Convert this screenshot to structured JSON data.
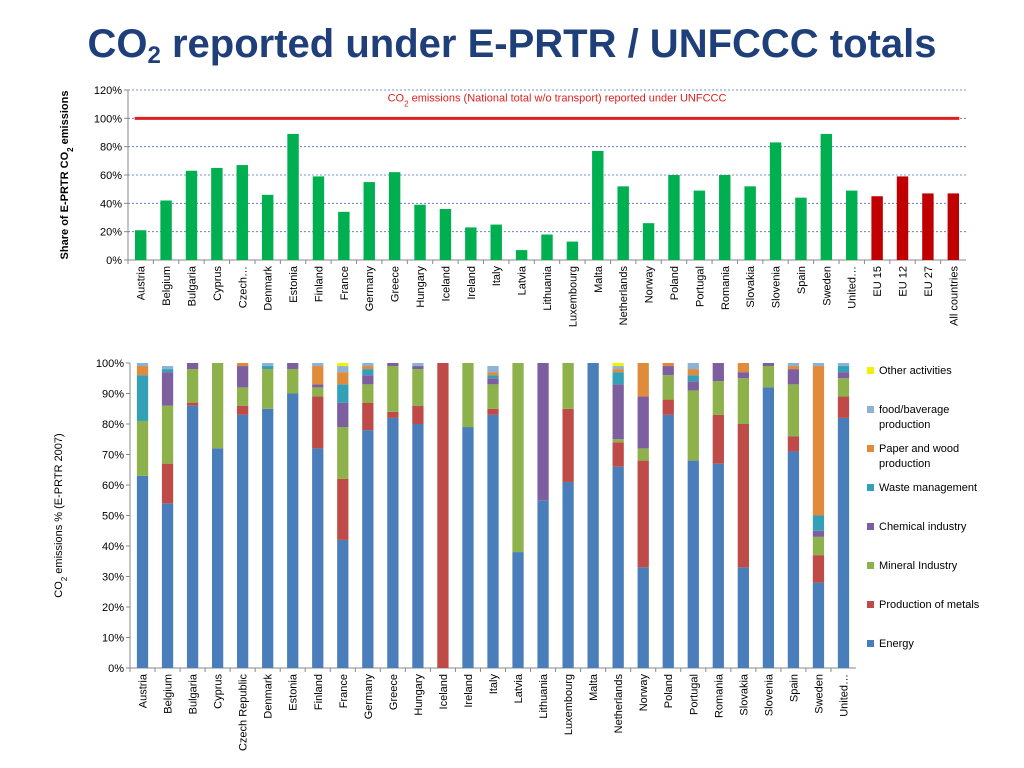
{
  "slide": {
    "title_main": "CO",
    "title_sub": "2",
    "title_rest": " reported under E-PRTR / UNFCCC totals"
  },
  "chart_data": [
    {
      "type": "bar",
      "ylabel_pre": "Share of E-PRTR CO",
      "ylabel_sub": "2",
      "ylabel_post": " emissions",
      "ylim": [
        0,
        120
      ],
      "yticks": [
        0,
        20,
        40,
        60,
        80,
        100,
        120
      ],
      "ytick_labels": [
        "0%",
        "20%",
        "40%",
        "60%",
        "80%",
        "100%",
        "120%"
      ],
      "grid": true,
      "categories": [
        "Austria",
        "Belgium",
        "Bulgaria",
        "Cyprus",
        "Czech…",
        "Denmark",
        "Estonia",
        "Finland",
        "France",
        "Germany",
        "Greece",
        "Hungary",
        "Iceland",
        "Ireland",
        "Italy",
        "Latvia",
        "Lithuania",
        "Luxembourg",
        "Malta",
        "Netherlands",
        "Norway",
        "Poland",
        "Portugal",
        "Romania",
        "Slovakia",
        "Slovenia",
        "Spain",
        "Sweden",
        "United…",
        "EU 15",
        "EU 12",
        "EU 27",
        "All countries"
      ],
      "values": [
        21,
        42,
        63,
        65,
        67,
        46,
        89,
        59,
        34,
        55,
        62,
        39,
        36,
        23,
        25,
        7,
        18,
        13,
        77,
        52,
        26,
        60,
        49,
        60,
        52,
        83,
        44,
        89,
        49,
        45,
        59,
        47,
        47
      ],
      "bar_colors": [
        "#00B050",
        "#00B050",
        "#00B050",
        "#00B050",
        "#00B050",
        "#00B050",
        "#00B050",
        "#00B050",
        "#00B050",
        "#00B050",
        "#00B050",
        "#00B050",
        "#00B050",
        "#00B050",
        "#00B050",
        "#00B050",
        "#00B050",
        "#00B050",
        "#00B050",
        "#00B050",
        "#00B050",
        "#00B050",
        "#00B050",
        "#00B050",
        "#00B050",
        "#00B050",
        "#00B050",
        "#00B050",
        "#00B050",
        "#C00000",
        "#C00000",
        "#C00000",
        "#C00000"
      ],
      "reference_line": {
        "value": 100,
        "color": "#E02020",
        "label_pre": "CO",
        "label_sub": "2",
        "label_post": " emissions  (National total w/o transport) reported under UNFCCC"
      }
    },
    {
      "type": "stacked_bar",
      "ylabel_pre": "CO",
      "ylabel_sub": "2",
      "ylabel_post": " emissions % (E-PRTR 2007)",
      "ylim": [
        0,
        100
      ],
      "yticks": [
        0,
        10,
        20,
        30,
        40,
        50,
        60,
        70,
        80,
        90,
        100
      ],
      "ytick_labels": [
        "0%",
        "10%",
        "20%",
        "30%",
        "40%",
        "50%",
        "60%",
        "70%",
        "80%",
        "90%",
        "100%"
      ],
      "categories": [
        "Austria",
        "Belgium",
        "Bulgaria",
        "Cyprus",
        "Czech Republic",
        "Denmark",
        "Estonia",
        "Finland",
        "France",
        "Germany",
        "Greece",
        "Hungary",
        "Iceland",
        "Ireland",
        "Italy",
        "Latvia",
        "Lithuania",
        "Luxembourg",
        "Malta",
        "Netherlands",
        "Norway",
        "Poland",
        "Portugal",
        "Romania",
        "Slovakia",
        "Slovenia",
        "Spain",
        "Sweden",
        "United…"
      ],
      "series": [
        {
          "name": "Energy",
          "color": "#4A7EBB",
          "values": [
            63,
            54,
            86,
            72,
            83,
            85,
            90,
            72,
            42,
            78,
            82,
            80,
            0,
            79,
            83,
            38,
            55,
            61,
            100,
            66,
            33,
            83,
            68,
            67,
            33,
            92,
            71,
            28,
            82
          ]
        },
        {
          "name": "Production of metals",
          "color": "#BE4B48",
          "values": [
            0,
            13,
            1,
            0,
            3,
            0,
            0,
            17,
            20,
            9,
            2,
            6,
            100,
            0,
            2,
            0,
            0,
            24,
            0,
            8,
            35,
            5,
            0,
            16,
            47,
            0,
            5,
            9,
            7
          ]
        },
        {
          "name": "Mineral Industry",
          "color": "#8DB14B",
          "values": [
            18,
            19,
            11,
            28,
            6,
            13,
            8,
            3,
            17,
            6,
            15,
            12,
            0,
            21,
            8,
            62,
            0,
            15,
            0,
            1,
            4,
            8,
            23,
            11,
            15,
            7,
            17,
            6,
            6
          ]
        },
        {
          "name": "Chemical industry",
          "color": "#7D5FA0",
          "values": [
            0,
            11,
            2,
            0,
            7,
            0,
            2,
            1,
            8,
            3,
            1,
            1,
            0,
            0,
            2,
            0,
            45,
            0,
            0,
            18,
            17,
            3,
            3,
            6,
            2,
            1,
            5,
            2,
            2
          ]
        },
        {
          "name": "Waste management",
          "color": "#33A0B8",
          "values": [
            15,
            1,
            0,
            0,
            0,
            1,
            0,
            0,
            6,
            2,
            0,
            0,
            0,
            0,
            1,
            0,
            0,
            0,
            0,
            4,
            0,
            0,
            2,
            0,
            0,
            0,
            0,
            5,
            2
          ]
        },
        {
          "name": "Paper and wood production",
          "color": "#E08A3C",
          "values": [
            3,
            0,
            0,
            0,
            1,
            0,
            0,
            6,
            4,
            1,
            0,
            0,
            0,
            0,
            1,
            0,
            0,
            0,
            0,
            1,
            11,
            1,
            2,
            0,
            3,
            0,
            1,
            49,
            0
          ]
        },
        {
          "name": "food/baverage production",
          "color": "#8CB2D6",
          "values": [
            1,
            1,
            0,
            0,
            0,
            1,
            0,
            1,
            2,
            1,
            0,
            1,
            0,
            0,
            2,
            0,
            0,
            0,
            0,
            1,
            0,
            0,
            2,
            0,
            0,
            0,
            1,
            1,
            1
          ]
        },
        {
          "name": "Other activities",
          "color": "#F2F200",
          "values": [
            0,
            0,
            0,
            0,
            0,
            0,
            0,
            0,
            1,
            0,
            0,
            0,
            0,
            0,
            0,
            0,
            0,
            0,
            0,
            1,
            0,
            0,
            0,
            0,
            0,
            0,
            0,
            0,
            0
          ]
        }
      ],
      "legend_placement": "right"
    }
  ]
}
